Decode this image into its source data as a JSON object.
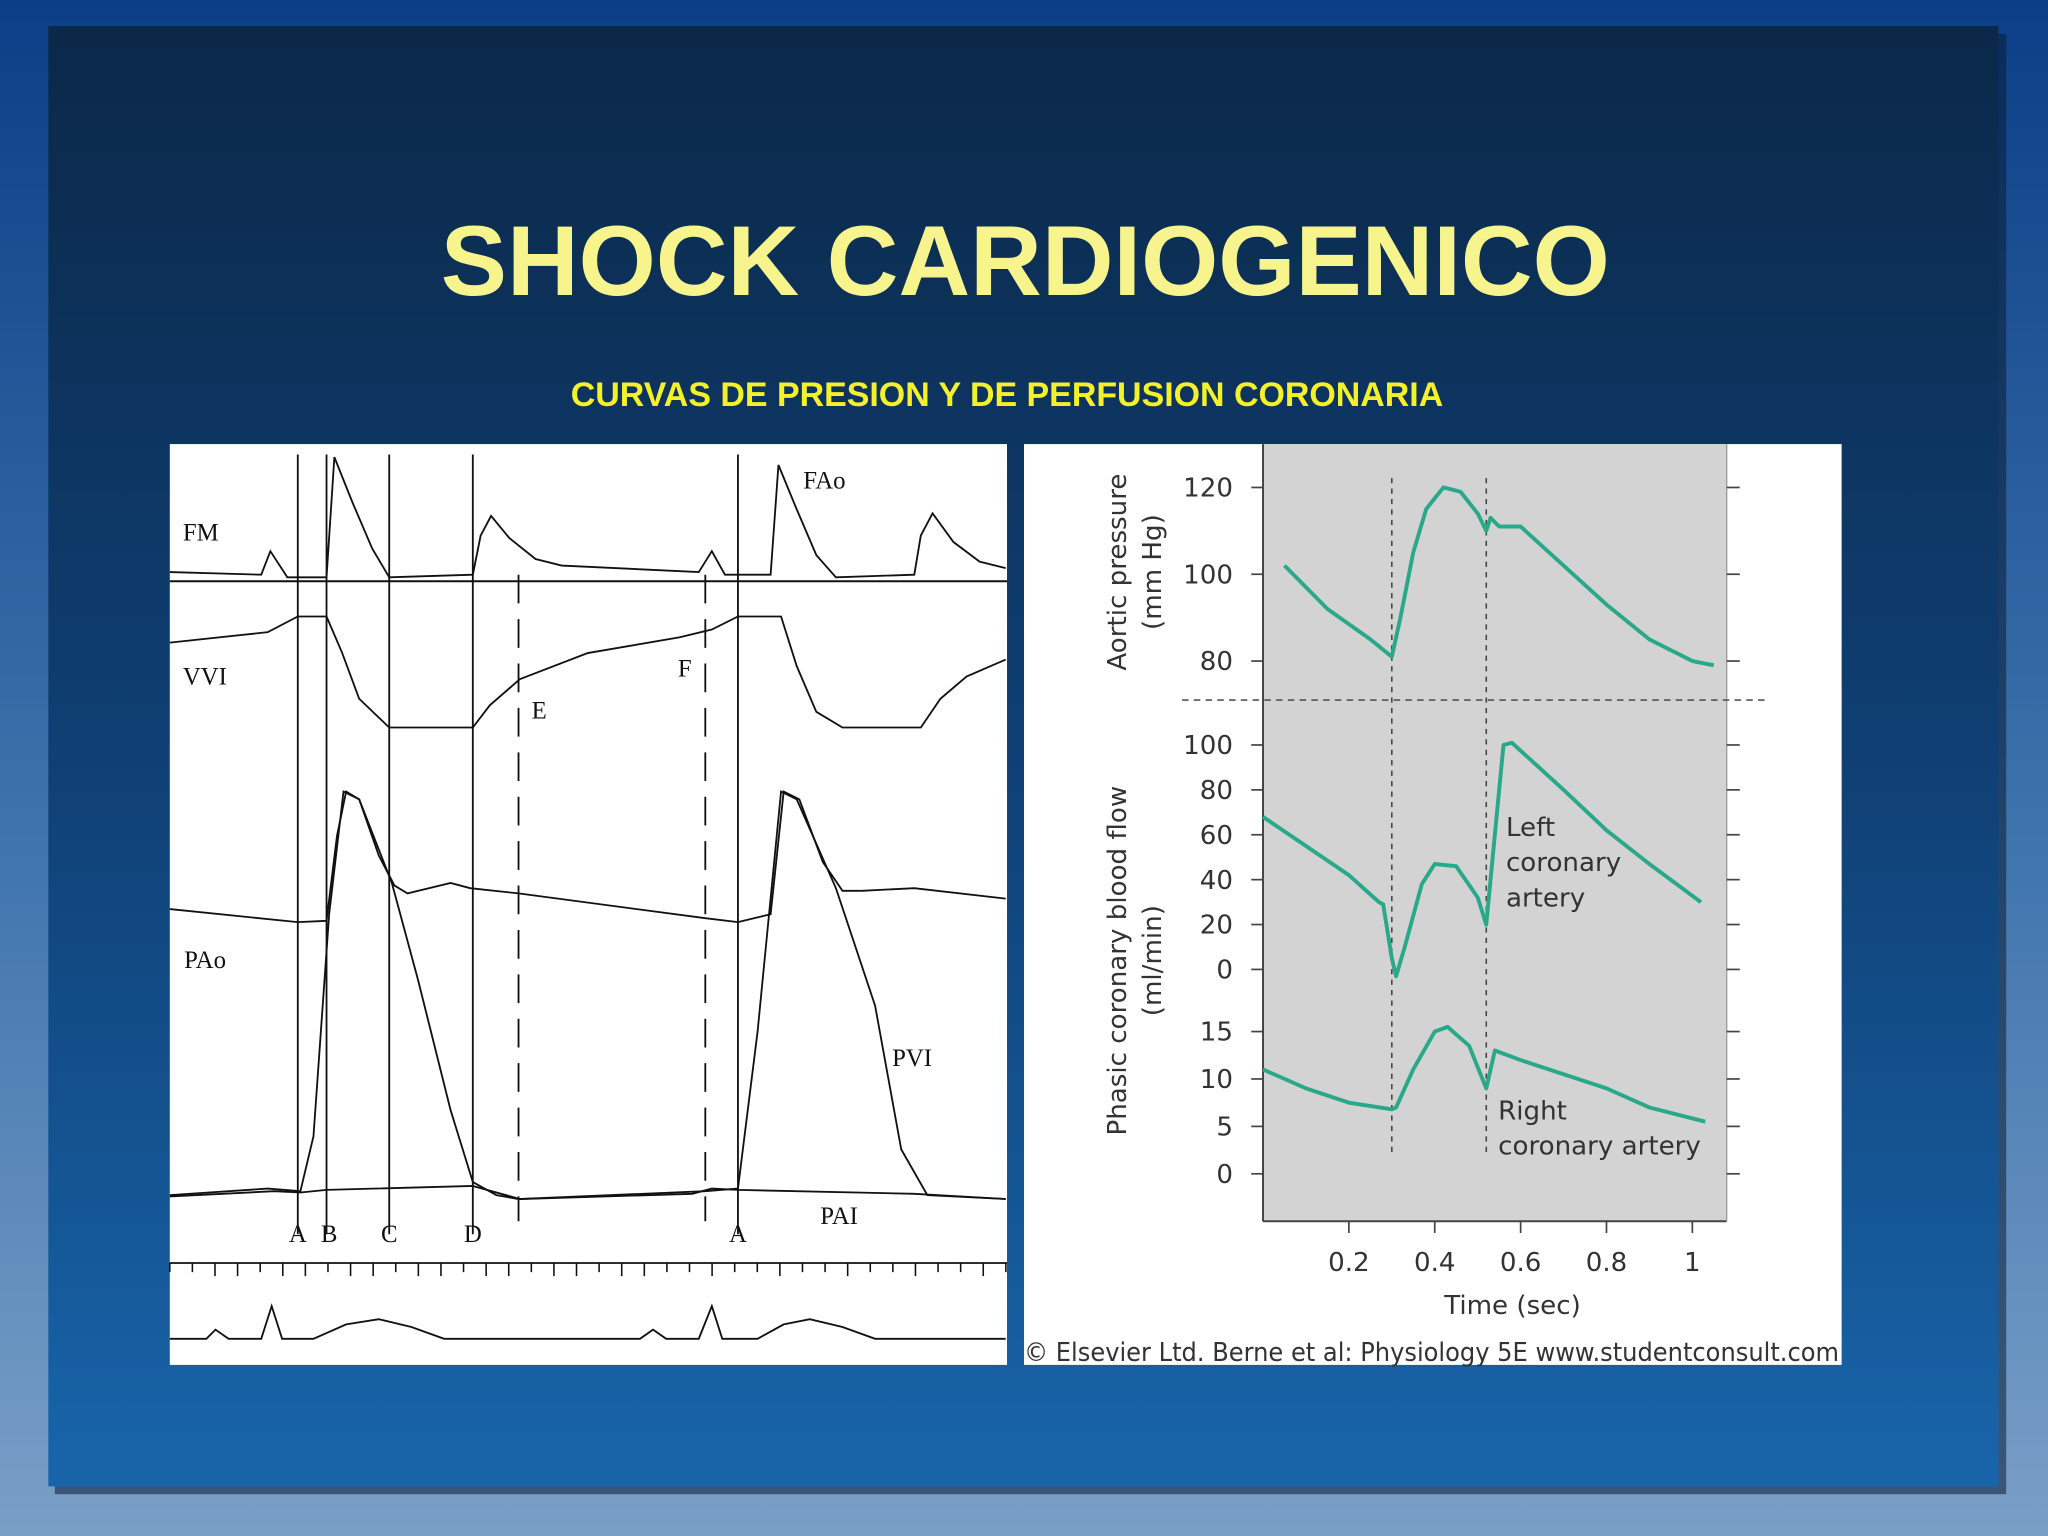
{
  "title": "SHOCK CARDIOGENICO",
  "subtitle": "CURVAS DE PRESION Y DE PERFUSION CORONARIA",
  "left_figure": {
    "labels": [
      "FM",
      "FAo",
      "VVI",
      "E",
      "F",
      "PAo",
      "PVI",
      "PAI",
      "A",
      "B",
      "C",
      "D",
      "A"
    ]
  },
  "chart_data": {
    "type": "line",
    "xlabel": "Time (sec)",
    "xlim": [
      0,
      1.08
    ],
    "xticks": [
      0.2,
      0.4,
      0.6,
      0.8,
      1
    ],
    "markers": [
      0.3,
      0.52
    ],
    "color": "#2aa98a",
    "panels": [
      {
        "ylabel": [
          "Aortic pressure",
          "(mm Hg)"
        ],
        "ylim": [
          71,
          130
        ],
        "yticks": [
          80,
          100,
          120
        ],
        "series": [
          {
            "x": [
              0.05,
              0.15,
              0.25,
              0.3,
              0.32,
              0.35,
              0.38,
              0.42,
              0.46,
              0.5,
              0.52,
              0.53,
              0.55,
              0.6,
              0.7,
              0.8,
              0.9,
              1.0,
              1.05
            ],
            "values": [
              102,
              92,
              85,
              81,
              90,
              105,
              115,
              120,
              119,
              114,
              110,
              113,
              111,
              111,
              102,
              93,
              85,
              80,
              79
            ]
          }
        ]
      },
      {
        "ylabel": [
          "Phasic coronary blood flow",
          "(ml/min)"
        ],
        "ylim": [
          -15,
          120
        ],
        "yticks": [
          0,
          20,
          40,
          60,
          80,
          100
        ],
        "annotation": [
          "Left",
          "coronary",
          "artery"
        ],
        "series": [
          {
            "x": [
              0.0,
              0.1,
              0.2,
              0.27,
              0.28,
              0.3,
              0.31,
              0.33,
              0.37,
              0.4,
              0.45,
              0.5,
              0.52,
              0.54,
              0.56,
              0.58,
              0.7,
              0.8,
              0.9,
              1.02
            ],
            "values": [
              68,
              55,
              42,
              30,
              29,
              5,
              -3,
              10,
              38,
              47,
              46,
              32,
              20,
              60,
              100,
              101,
              80,
              62,
              47,
              30
            ]
          }
        ]
      },
      {
        "ylim": [
          -5,
          18
        ],
        "yticks": [
          0,
          5,
          10,
          15
        ],
        "annotation": [
          "Right",
          "coronary artery"
        ],
        "series": [
          {
            "x": [
              0.0,
              0.1,
              0.2,
              0.3,
              0.31,
              0.35,
              0.4,
              0.43,
              0.48,
              0.52,
              0.54,
              0.6,
              0.7,
              0.8,
              0.9,
              1.03
            ],
            "values": [
              11,
              9,
              7.5,
              6.8,
              7,
              11,
              15,
              15.5,
              13.5,
              9,
              13,
              12,
              10.5,
              9,
              7,
              5.5
            ]
          }
        ]
      }
    ],
    "credit": "© Elsevier Ltd. Berne et al: Physiology 5E www.studentconsult.com"
  }
}
